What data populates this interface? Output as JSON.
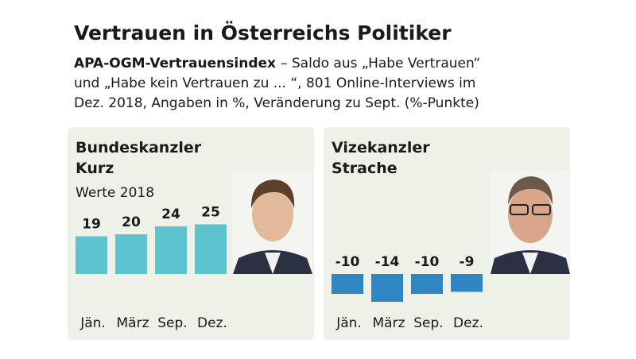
{
  "header": {
    "title": "Vertrauen in Österreichs Politiker",
    "subtitle_bold": "APA-OGM-Vertrauensindex",
    "subtitle_lines": [
      "– Saldo aus „Habe Vertrauen“",
      "und „Habe kein Vertrauen zu ... “, 801 Online-Interviews im",
      "Dez. 2018, Angaben in %, Veränderung zu Sept. (%-Punkte)"
    ]
  },
  "chart_data": [
    {
      "type": "bar",
      "title": [
        "Bundeskanzler",
        "Kurz"
      ],
      "subtitle": "Werte 2018",
      "categories": [
        "Jän.",
        "März",
        "Sep.",
        "Dez."
      ],
      "values": [
        19,
        20,
        24,
        25
      ],
      "color": "#5bc4cf"
    },
    {
      "type": "bar",
      "title": [
        "Vizekanzler",
        "Strache"
      ],
      "categories": [
        "Jän.",
        "März",
        "Sep.",
        "Dez."
      ],
      "values": [
        -10,
        -14,
        -10,
        -9
      ],
      "color": "#2f86c0"
    }
  ]
}
